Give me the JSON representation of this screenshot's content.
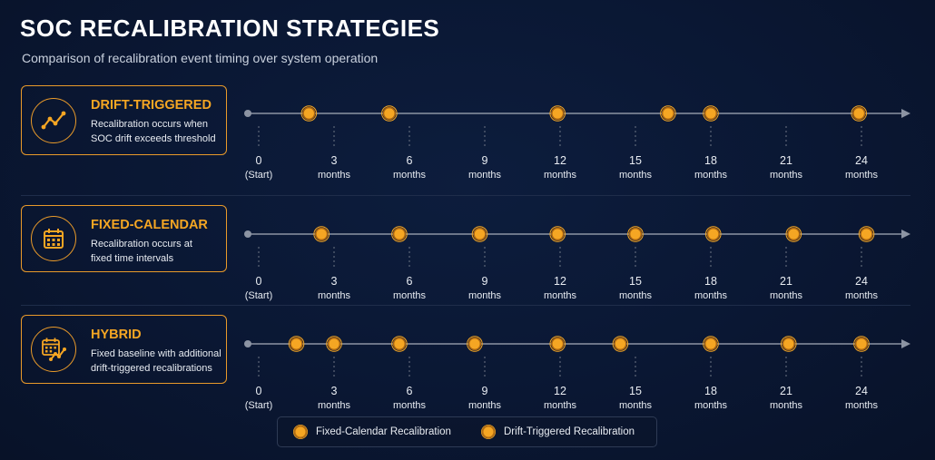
{
  "header": {
    "title": "SOC RECALIBRATION STRATEGIES",
    "subtitle": "Comparison of recalibration event timing over system operation"
  },
  "axis": {
    "months": [
      0,
      3,
      6,
      9,
      12,
      15,
      18,
      21,
      24
    ],
    "start_label": "(Start)",
    "unit_label": "months"
  },
  "strategies": [
    {
      "name": "DRIFT-TRIGGERED",
      "desc_lines": [
        "Recalibration occurs when",
        "SOC drift exceeds threshold"
      ],
      "icon": "drift-line-icon",
      "events_months": [
        2.0,
        5.2,
        11.9,
        16.3,
        18.0,
        23.9
      ]
    },
    {
      "name": "FIXED-CALENDAR",
      "desc_lines": [
        "Recalibration occurs at",
        "fixed time intervals"
      ],
      "icon": "calendar-icon",
      "events_months": [
        2.5,
        5.6,
        8.8,
        11.9,
        15.0,
        18.1,
        21.3,
        24.2
      ]
    },
    {
      "name": "HYBRID",
      "desc_lines": [
        "Fixed baseline with additional",
        "drift-triggered recalibrations"
      ],
      "icon": "calendar-trend-icon",
      "events_months": [
        1.5,
        3.0,
        5.6,
        8.6,
        11.9,
        14.4,
        18.0,
        21.1,
        24.0
      ]
    }
  ],
  "legend": {
    "fixed_label": "Fixed-Calendar Recalibration",
    "drift_label": "Drift-Triggered Recalibration"
  },
  "colors": {
    "accent": "#f5a623",
    "line": "#8c94a3",
    "background": "#0a1733"
  }
}
